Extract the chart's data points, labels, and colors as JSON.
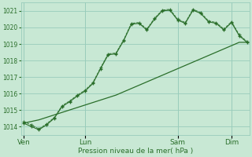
{
  "bg_color": "#c8e8d4",
  "grid_color": "#99ccbb",
  "line_color": "#2a6e2a",
  "ylabel": "Pression niveau de la mer( hPa )",
  "ylim": [
    1013.5,
    1021.5
  ],
  "yticks": [
    1014,
    1015,
    1016,
    1017,
    1018,
    1019,
    1020,
    1021
  ],
  "day_labels": [
    "Ven",
    "Lun",
    "Sam",
    "Dim"
  ],
  "day_positions": [
    0,
    8,
    20,
    27
  ],
  "line_wavy1": [
    1014.2,
    1014.0,
    1013.8,
    1014.1,
    1014.5,
    1015.2,
    1015.5,
    1015.85,
    1016.15,
    1016.6,
    1017.5,
    1018.35,
    1018.4,
    1019.2,
    1020.2,
    1020.25,
    1019.85,
    1020.5,
    1021.0,
    1021.05,
    1020.45,
    1020.25,
    1021.05,
    1020.85,
    1020.35,
    1020.25,
    1019.85,
    1020.3,
    1019.5,
    1019.1
  ],
  "line_wavy2": [
    1014.3,
    1014.1,
    1013.85,
    1014.15,
    1014.55,
    1015.25,
    1015.55,
    1015.9,
    1016.2,
    1016.65,
    1017.55,
    1018.4,
    1018.45,
    1019.25,
    1020.25,
    1020.3,
    1019.9,
    1020.55,
    1021.05,
    1021.1,
    1020.5,
    1020.3,
    1021.1,
    1020.9,
    1020.4,
    1020.3,
    1019.9,
    1020.35,
    1019.55,
    1019.15
  ],
  "line_smooth": [
    1014.2,
    1014.3,
    1014.4,
    1014.55,
    1014.7,
    1014.85,
    1015.0,
    1015.15,
    1015.3,
    1015.45,
    1015.6,
    1015.75,
    1015.9,
    1016.1,
    1016.3,
    1016.5,
    1016.7,
    1016.9,
    1017.1,
    1017.3,
    1017.5,
    1017.7,
    1017.9,
    1018.1,
    1018.3,
    1018.5,
    1018.7,
    1018.9,
    1019.1,
    1019.1
  ]
}
